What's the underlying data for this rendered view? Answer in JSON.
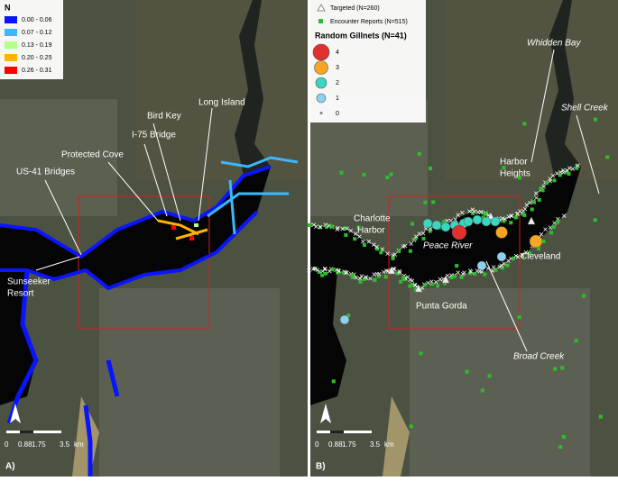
{
  "panel_a": {
    "tag": "A)",
    "legend": {
      "title": "N",
      "items": [
        {
          "label": "0.00 - 0.06",
          "color": "#0a14ff"
        },
        {
          "label": "0.07 - 0.12",
          "color": "#3cb8ff"
        },
        {
          "label": "0.13 - 0.19",
          "color": "#b6ff8c"
        },
        {
          "label": "0.20 - 0.25",
          "color": "#ffb400"
        },
        {
          "label": "0.26 - 0.31",
          "color": "#ff0000"
        }
      ]
    },
    "labels": {
      "long_island": "Long Island",
      "bird_key": "Bird Key",
      "i75": "I-75 Bridge",
      "protected_cove": "Protected Cove",
      "us41": "US-41 Bridges",
      "sunseeker": [
        "Sunseeker",
        "Resort"
      ]
    },
    "north": "N",
    "scale": {
      "ticks": [
        "0",
        "0.88",
        "1.75",
        "3.5"
      ],
      "unit": "km"
    }
  },
  "panel_b": {
    "tag": "B)",
    "legend": {
      "targeted": "Targeted (N=260)",
      "encounter": "Encounter Reports (N=515)",
      "gillnets_title": "Random Gillnets (N=41)",
      "items": [
        {
          "label": "4",
          "color": "#e03030"
        },
        {
          "label": "3",
          "color": "#f5a623"
        },
        {
          "label": "2",
          "color": "#3ad6c0"
        },
        {
          "label": "1",
          "color": "#8fd0ef"
        },
        {
          "label": "0",
          "color": "#f0e060"
        }
      ]
    },
    "labels": {
      "whidden_bay": "Whidden Bay",
      "shell_creek": "Shell Creek",
      "harbor_heights": [
        "Harbor",
        "Heights"
      ],
      "charlotte_harbor": [
        "Charlotte",
        "Harbor"
      ],
      "peace_river": "Peace River",
      "cleveland": "Cleveland",
      "punta_gorda": "Punta Gorda",
      "broad_creek": "Broad Creek"
    },
    "north": "N",
    "scale": {
      "ticks": [
        "0",
        "0.88",
        "1.75",
        "3.5"
      ],
      "unit": "km"
    }
  }
}
